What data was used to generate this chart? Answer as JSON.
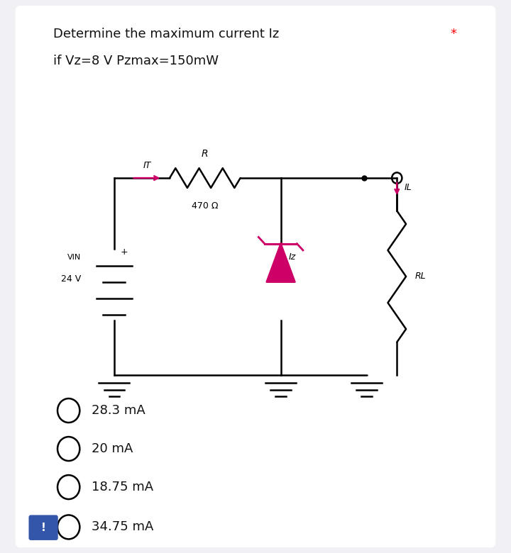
{
  "title_line1": "Determine the maximum current Iz",
  "title_line2": "if Vz=8 V Pzmax=150mW",
  "asterisk": "*",
  "background_color": "#f0f0f5",
  "card_color": "#ffffff",
  "options": [
    "28.3 mA",
    "20 mA",
    "18.75 mA",
    "34.75 mA"
  ],
  "resistor_label": "R",
  "resistor_value": "470 Ω",
  "vin_label": "VIN",
  "vin_value": "24 V",
  "rl_label": "RL",
  "it_label": "IT",
  "iz_label": "Iz",
  "il_label": "IL",
  "circuit_color": "#000000",
  "zener_color": "#cc0066",
  "arrow_color": "#cc0066"
}
